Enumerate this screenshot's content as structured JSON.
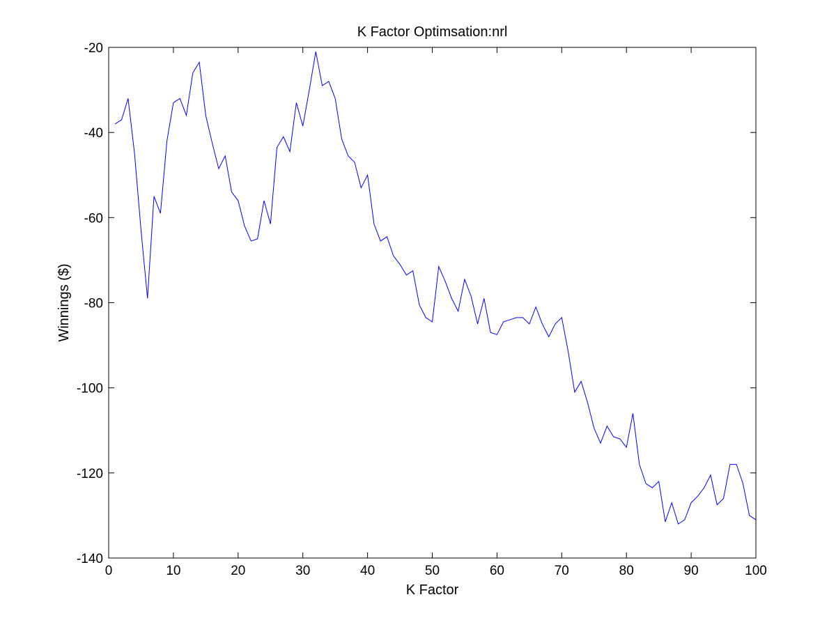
{
  "chart_data": {
    "type": "line",
    "title": "K Factor Optimsation:nrl",
    "xlabel": "K Factor",
    "ylabel": "Winnings ($)",
    "xlim": [
      0,
      100
    ],
    "ylim": [
      -140,
      -20
    ],
    "xticks": [
      0,
      10,
      20,
      30,
      40,
      50,
      60,
      70,
      80,
      90,
      100
    ],
    "yticks": [
      -140,
      -120,
      -100,
      -80,
      -60,
      -40,
      -20
    ],
    "xtick_labels": [
      "0",
      "10",
      "20",
      "30",
      "40",
      "50",
      "60",
      "70",
      "80",
      "90",
      "100"
    ],
    "ytick_labels": [
      "-140",
      "-120",
      "-100",
      "-80",
      "-60",
      "-40",
      "-20"
    ],
    "grid": false,
    "box": true,
    "line_color": "#0000ff",
    "series": [
      {
        "x": [
          1,
          2,
          3,
          4,
          5,
          6,
          7,
          8,
          9,
          10,
          11,
          12,
          13,
          14,
          15,
          16,
          17,
          18,
          19,
          20,
          21,
          22,
          23,
          24,
          25,
          26,
          27,
          28,
          29,
          30,
          31,
          32,
          33,
          34,
          35,
          36,
          37,
          38,
          39,
          40,
          41,
          42,
          43,
          44,
          45,
          46,
          47,
          48,
          49,
          50,
          51,
          52,
          53,
          54,
          55,
          56,
          57,
          58,
          59,
          60,
          61,
          62,
          63,
          64,
          65,
          66,
          67,
          68,
          69,
          70,
          71,
          72,
          73,
          74,
          75,
          76,
          77,
          78,
          79,
          80,
          81,
          82,
          83,
          84,
          85,
          86,
          87,
          88,
          89,
          90,
          91,
          92,
          93,
          94,
          95,
          96,
          97,
          98,
          99,
          100
        ],
        "values": [
          -38,
          -37,
          -32,
          -45,
          -63,
          -79,
          -55,
          -59,
          -42,
          -33,
          -32,
          -36,
          -26,
          -23.5,
          -36,
          -42.5,
          -48.5,
          -45.5,
          -54,
          -56,
          -62,
          -65.5,
          -65,
          -56,
          -61.5,
          -43.5,
          -41,
          -44.5,
          -33,
          -38.5,
          -30,
          -21,
          -29,
          -28,
          -32,
          -41.5,
          -45.5,
          -47,
          -53,
          -50,
          -61.5,
          -65.5,
          -64.5,
          -69,
          -71,
          -73.5,
          -72.5,
          -80.5,
          -83.5,
          -84.5,
          -71.5,
          -75,
          -79,
          -82,
          -74.5,
          -78.5,
          -85,
          -79,
          -87,
          -87.5,
          -84.5,
          -84,
          -83.5,
          -83.5,
          -85,
          -81,
          -85,
          -88,
          -85,
          -83.5,
          -91.5,
          -101,
          -98.5,
          -103.5,
          -109.5,
          -113,
          -109,
          -111.5,
          -112,
          -114,
          -106,
          -118,
          -122.5,
          -123.5,
          -122,
          -131.5,
          -127,
          -132,
          -131,
          -127,
          -125.5,
          -123.5,
          -120.5,
          -127.5,
          -126,
          -118,
          -118,
          -122.5,
          -130,
          -131
        ]
      }
    ]
  }
}
